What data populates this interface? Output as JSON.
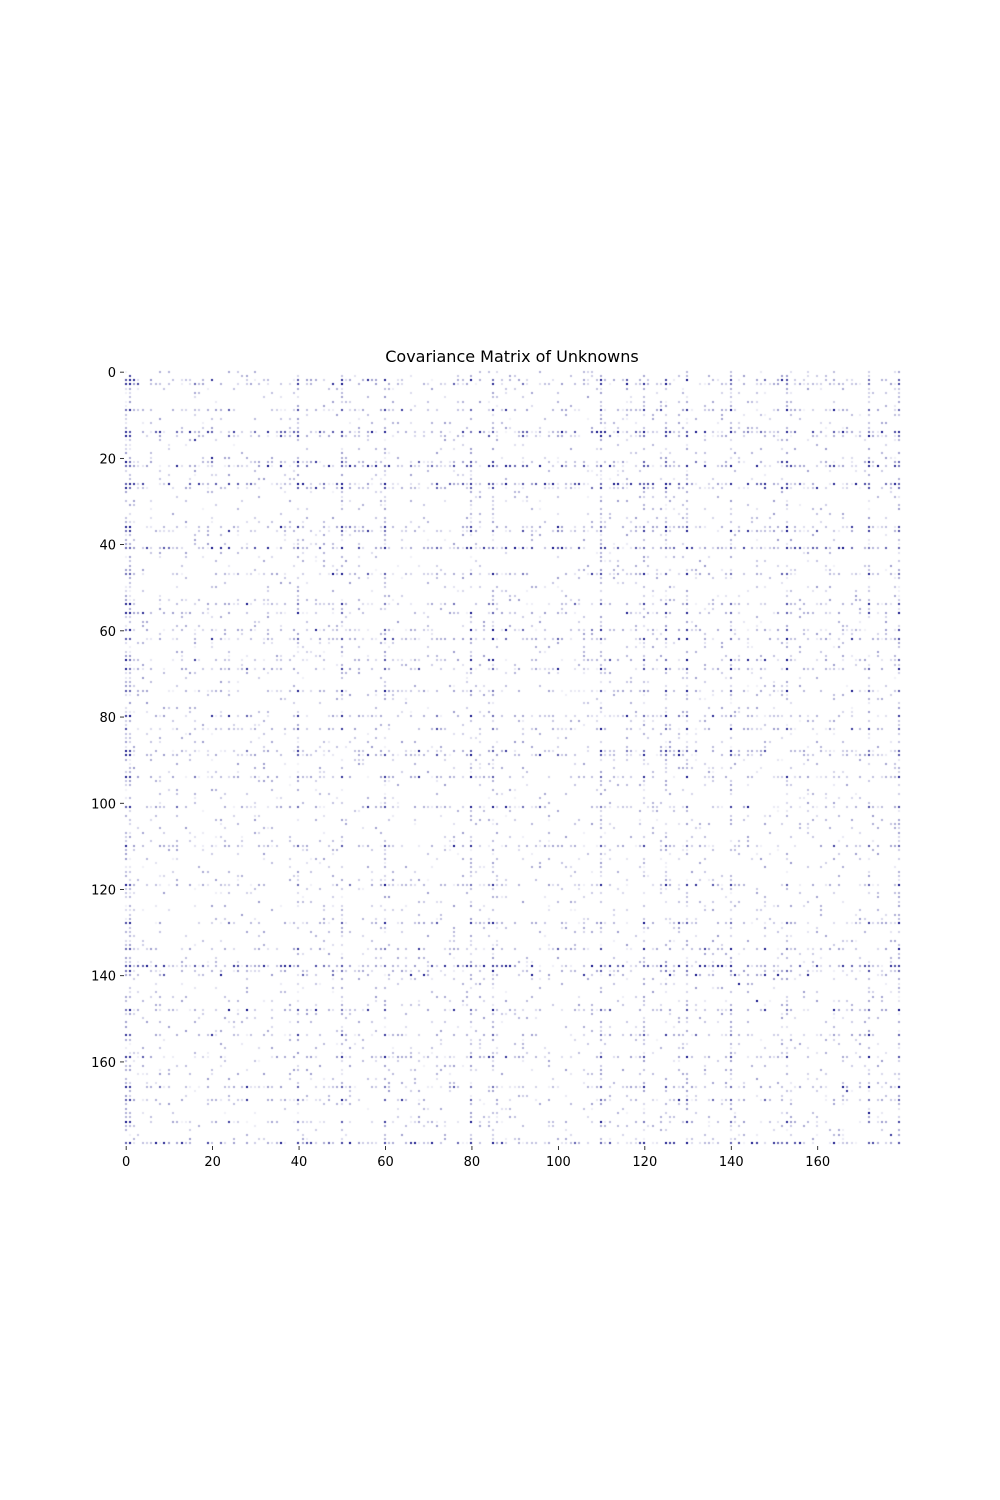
{
  "chart_data": {
    "type": "heatmap",
    "title": "Covariance Matrix of Unknowns",
    "xlabel": "",
    "ylabel": "",
    "n_rows": 180,
    "n_cols": 180,
    "x_range": [
      0,
      180
    ],
    "y_range": [
      0,
      180
    ],
    "y_axis_inverted": true,
    "x_ticks": [
      0,
      20,
      40,
      60,
      80,
      100,
      120,
      140,
      160
    ],
    "x_tick_labels": [
      "0",
      "20",
      "40",
      "60",
      "80",
      "100",
      "120",
      "140",
      "160"
    ],
    "y_ticks": [
      0,
      20,
      40,
      60,
      80,
      100,
      120,
      140,
      160
    ],
    "y_tick_labels": [
      "0",
      "20",
      "40",
      "60",
      "80",
      "100",
      "120",
      "140",
      "160"
    ],
    "colormap": "white-to-dark-blue (sparse, mostly near zero)",
    "color_low": "#ffffff",
    "color_high": "#00007f",
    "grid": false,
    "legend": "none",
    "structure": {
      "dense_rows": [
        2,
        3,
        9,
        14,
        15,
        21,
        22,
        26,
        27,
        36,
        37,
        41,
        47,
        54,
        56,
        60,
        62,
        67,
        69,
        74,
        80,
        83,
        88,
        89,
        94,
        101,
        110,
        119,
        128,
        134,
        138,
        139,
        148,
        154,
        159,
        166,
        169,
        174,
        179
      ],
      "dense_cols": [
        0,
        1,
        40,
        50,
        60,
        80,
        85,
        110,
        120,
        125,
        130,
        140,
        153,
        172,
        179
      ],
      "strong_bands_rows": [
        14,
        22,
        26,
        41,
        138,
        140,
        179
      ],
      "strong_bands_cols": [
        0,
        1,
        179
      ]
    }
  }
}
